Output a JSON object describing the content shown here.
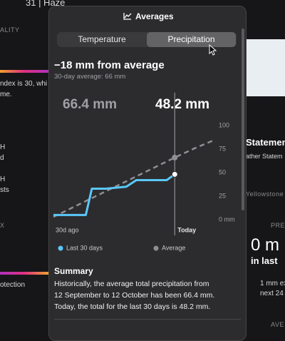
{
  "background": {
    "left": [
      "31 | Haze",
      "ALITY",
      "ndex is 30, whi",
      "me.",
      "H",
      "d",
      "H",
      "sts",
      "X",
      "otection"
    ],
    "right": [
      "Statemen",
      "ather Statem",
      "Yellowstone N",
      "PRE",
      "0 m",
      "in last",
      "1 mm ex",
      "next 24",
      "AVE"
    ]
  },
  "panel": {
    "title": "Averages",
    "tabs": [
      "Temperature",
      "Precipitation"
    ],
    "heading": "−18 mm from average",
    "subheading": "30-day average: 66 mm",
    "average_readout": "66.4 mm",
    "current_readout": "48.2 mm",
    "summary_title": "Summary",
    "summary_lines": [
      "Historically, the average total precipitation from",
      "12 September to 12 October has been 66.4 mm.",
      "Today, the total for the last 30 days is 48.2 mm."
    ]
  },
  "chart": {
    "type": "line",
    "x_labels": [
      "30d ago",
      "Today"
    ],
    "xlim": [
      0,
      40
    ],
    "ylim": [
      -5,
      135
    ],
    "yticks": [
      {
        "value": 0,
        "label": "0 mm"
      },
      25,
      50,
      75,
      100
    ],
    "grid": false,
    "series": [
      {
        "name": "Last 30 days",
        "color": "#5ac8fa",
        "x": [
          0,
          8,
          9.5,
          13,
          18,
          20.5,
          28,
          30
        ],
        "values": [
          5,
          5,
          33,
          33,
          35,
          42,
          42,
          48.2
        ]
      },
      {
        "name": "Average",
        "color": "#8e8e93",
        "x": [
          0,
          10,
          20,
          30,
          35,
          40
        ],
        "values": [
          3,
          24,
          45,
          66,
          76,
          85
        ]
      }
    ]
  }
}
